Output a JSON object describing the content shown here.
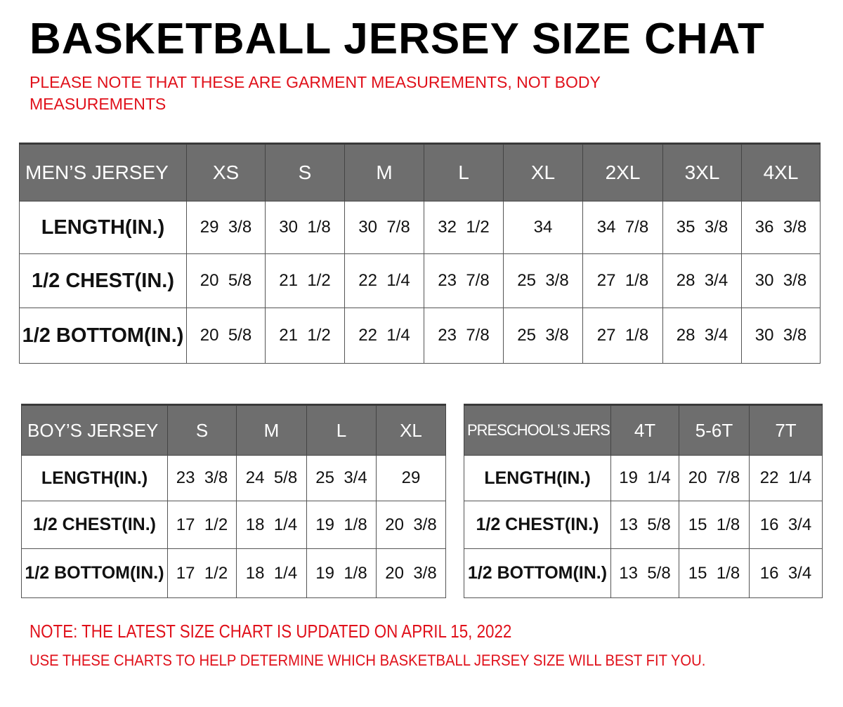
{
  "title": "BASKETBALL JERSEY SIZE CHAT",
  "garment_note_line1": "PLEASE NOTE THAT THESE ARE GARMENT MEASUREMENTS, NOT BODY",
  "garment_note_line2": "MEASUREMENTS",
  "colors": {
    "header_bg": "#6e6e6e",
    "note_red": "#e0101a"
  },
  "tables": {
    "men": {
      "label": "MEN’S JERSEY",
      "sizes": [
        "XS",
        "S",
        "M",
        "L",
        "XL",
        "2XL",
        "3XL",
        "4XL"
      ],
      "rows": [
        {
          "label": "LENGTH(IN.)",
          "values": [
            "29  3/8",
            "30  1/8",
            "30  7/8",
            "32  1/2",
            "34",
            "34  7/8",
            "35  3/8",
            "36  3/8"
          ]
        },
        {
          "label": "1/2  CHEST(IN.)",
          "values": [
            "20  5/8",
            "21  1/2",
            "22  1/4",
            "23  7/8",
            "25  3/8",
            "27  1/8",
            "28  3/4",
            "30  3/8"
          ]
        },
        {
          "label": "1/2  BOTTOM(IN.)",
          "values": [
            "20  5/8",
            "21  1/2",
            "22  1/4",
            "23  7/8",
            "25  3/8",
            "27  1/8",
            "28  3/4",
            "30  3/8"
          ]
        }
      ]
    },
    "boy": {
      "label": "BOY’S JERSEY",
      "sizes": [
        "S",
        "M",
        "L",
        "XL"
      ],
      "rows": [
        {
          "label": "LENGTH(IN.)",
          "values": [
            "23  3/8",
            "24  5/8",
            "25  3/4",
            "29"
          ]
        },
        {
          "label": "1/2  CHEST(IN.)",
          "values": [
            "17  1/2",
            "18  1/4",
            "19  1/8",
            "20  3/8"
          ]
        },
        {
          "label": "1/2  BOTTOM(IN.)",
          "values": [
            "17  1/2",
            "18  1/4",
            "19  1/8",
            "20  3/8"
          ]
        }
      ]
    },
    "pre": {
      "label": "PRESCHOOL’S JERSEY",
      "sizes": [
        "4T",
        "5-6T",
        "7T"
      ],
      "rows": [
        {
          "label": "LENGTH(IN.)",
          "values": [
            "19  1/4",
            "20  7/8",
            "22  1/4"
          ]
        },
        {
          "label": "1/2  CHEST(IN.)",
          "values": [
            "13  5/8",
            "15  1/8",
            "16  3/4"
          ]
        },
        {
          "label": "1/2  BOTTOM(IN.)",
          "values": [
            "13  5/8",
            "15  1/8",
            "16  3/4"
          ]
        }
      ]
    }
  },
  "update_note": "NOTE: THE LATEST SIZE CHART IS UPDATED ON APRIL 15, 2022",
  "fit_note": "USE THESE CHARTS TO HELP DETERMINE WHICH  BASKETBALL JERSEY  SIZE WILL BEST FIT YOU."
}
